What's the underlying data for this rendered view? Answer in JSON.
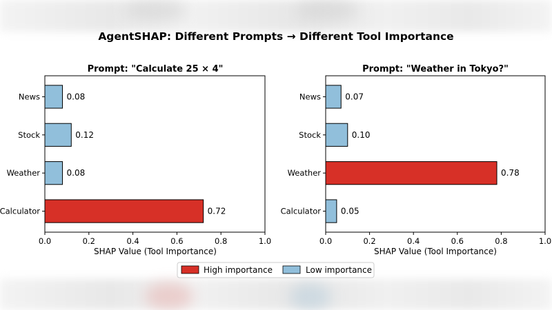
{
  "title": "AgentSHAP: Different Prompts → Different Tool Importance",
  "colors": {
    "high": "#d73027",
    "low": "#91bfdb",
    "edge": "#000000"
  },
  "legend": {
    "high_label": "High importance",
    "low_label": "Low importance"
  },
  "chart_data": [
    {
      "type": "bar",
      "orientation": "horizontal",
      "title": "Prompt: \"Calculate 25 × 4\"",
      "categories": [
        "Calculator",
        "Weather",
        "Stock",
        "News"
      ],
      "values": [
        0.72,
        0.08,
        0.12,
        0.08
      ],
      "value_labels": [
        "0.72",
        "0.08",
        "0.12",
        "0.08"
      ],
      "importance": [
        "high",
        "low",
        "low",
        "low"
      ],
      "xlabel": "SHAP Value (Tool Importance)",
      "ylabel": "",
      "xlim": [
        0,
        1.0
      ],
      "xticks": [
        "0.0",
        "0.2",
        "0.4",
        "0.6",
        "0.8",
        "1.0"
      ],
      "grid": false
    },
    {
      "type": "bar",
      "orientation": "horizontal",
      "title": "Prompt: \"Weather in Tokyo?\"",
      "categories": [
        "Calculator",
        "Weather",
        "Stock",
        "News"
      ],
      "values": [
        0.05,
        0.78,
        0.1,
        0.07
      ],
      "value_labels": [
        "0.05",
        "0.78",
        "0.10",
        "0.07"
      ],
      "importance": [
        "low",
        "high",
        "low",
        "low"
      ],
      "xlabel": "SHAP Value (Tool Importance)",
      "ylabel": "",
      "xlim": [
        0,
        1.0
      ],
      "xticks": [
        "0.0",
        "0.2",
        "0.4",
        "0.6",
        "0.8",
        "1.0"
      ],
      "grid": false
    }
  ]
}
